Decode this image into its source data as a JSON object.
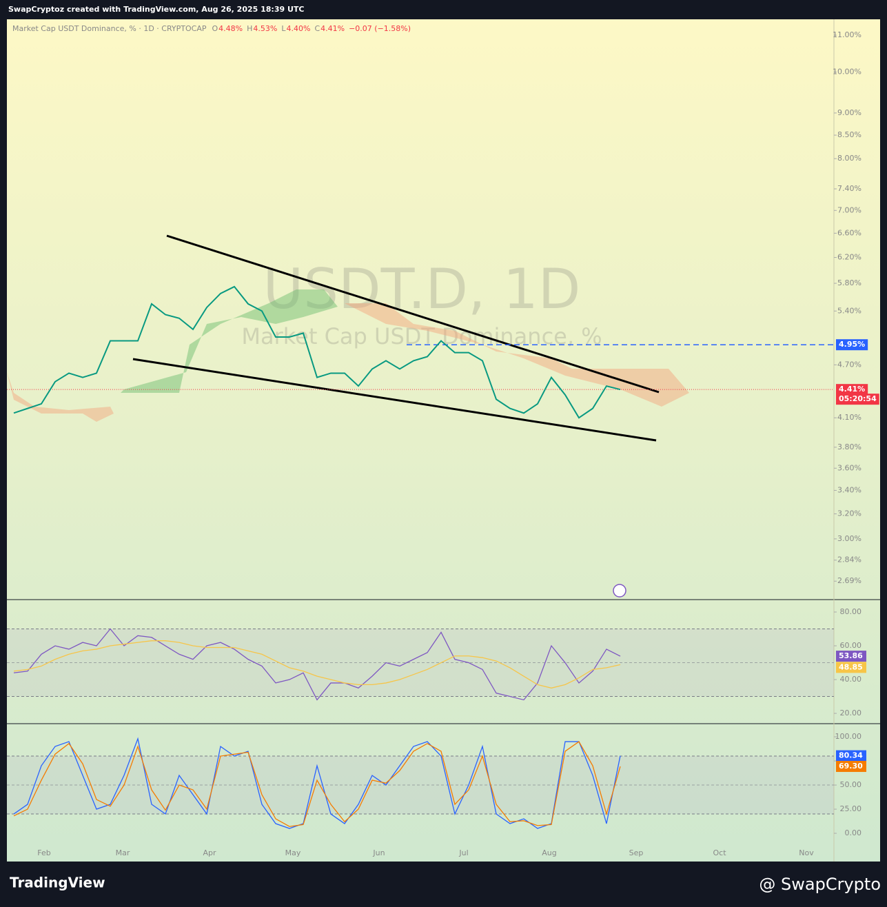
{
  "header": {
    "text": "SwapCryptoz created with TradingView.com, Aug 26, 2025 18:39 UTC"
  },
  "legend": {
    "symbol": "Market Cap USDT Dominance, % · 1D · CRYPTOCAP",
    "items": [
      {
        "key": "O",
        "value": "4.48%"
      },
      {
        "key": "H",
        "value": "4.53%"
      },
      {
        "key": "L",
        "value": "4.40%"
      },
      {
        "key": "C",
        "value": "4.41%"
      }
    ],
    "change": "−0.07 (−1.58%)"
  },
  "watermark": {
    "line1": "USDT.D, 1D",
    "line2": "Market Cap USDT Dominance, %"
  },
  "time_axis": [
    "Feb",
    "Mar",
    "Apr",
    "May",
    "Jun",
    "Jul",
    "Aug",
    "Sep",
    "Oct",
    "Nov"
  ],
  "chart_data": [
    {
      "type": "line",
      "log_scale": true,
      "ylim": [
        2.565,
        11.46
      ],
      "yticks": [
        {
          "value": 11,
          "label": "11.00%"
        },
        {
          "value": 10,
          "label": "10.00%"
        },
        {
          "value": 9,
          "label": "9.00%"
        },
        {
          "value": 8.5,
          "label": "8.50%"
        },
        {
          "value": 8,
          "label": "8.00%"
        },
        {
          "value": 7.4,
          "label": "7.40%"
        },
        {
          "value": 7,
          "label": "7.00%"
        },
        {
          "value": 6.6,
          "label": "6.60%"
        },
        {
          "value": 6.2,
          "label": "6.20%"
        },
        {
          "value": 5.8,
          "label": "5.80%"
        },
        {
          "value": 5.4,
          "label": "5.40%"
        },
        {
          "value": 4.7,
          "label": "4.70%"
        },
        {
          "value": 4.1,
          "label": "4.10%"
        },
        {
          "value": 3.8,
          "label": "3.80%"
        },
        {
          "value": 3.6,
          "label": "3.60%"
        },
        {
          "value": 3.4,
          "label": "3.40%"
        },
        {
          "value": 3.2,
          "label": "3.20%"
        },
        {
          "value": 3,
          "label": "3.00%"
        },
        {
          "value": 2.84,
          "label": "2.84%"
        },
        {
          "value": 2.69,
          "label": "2.69%"
        }
      ],
      "series": [
        {
          "color": "#089981",
          "values": [
            4.15,
            4.2,
            4.25,
            4.5,
            4.6,
            4.55,
            4.6,
            5.0,
            5.0,
            5.0,
            5.5,
            5.35,
            5.3,
            5.15,
            5.45,
            5.65,
            5.75,
            5.5,
            5.4,
            5.05,
            5.05,
            5.1,
            4.55,
            4.6,
            4.6,
            4.45,
            4.65,
            4.75,
            4.65,
            4.75,
            4.8,
            5.0,
            4.85,
            4.85,
            4.75,
            4.3,
            4.2,
            4.15,
            4.25,
            4.55,
            4.35,
            4.1,
            4.2,
            4.45,
            4.41
          ]
        }
      ],
      "price_lines": [
        {
          "value": 4.95,
          "label": "4.95%",
          "color": "#2962ff"
        },
        {
          "value": 4.41,
          "label": "4.41%",
          "sublabel": "05:20:54",
          "color": "#f23645"
        }
      ]
    },
    {
      "type": "line",
      "ylim": [
        13.9,
        87.35
      ],
      "yticks": [
        {
          "value": 80,
          "label": "80.00"
        },
        {
          "value": 60,
          "label": "60.00"
        },
        {
          "value": 40,
          "label": "40.00"
        },
        {
          "value": 20,
          "label": "20.00"
        }
      ],
      "bands": [
        30,
        70
      ],
      "midline": 50,
      "series": [
        {
          "color": "#7e57c2",
          "values": [
            44,
            45,
            55,
            60,
            58,
            62,
            60,
            70,
            60,
            66,
            65,
            60,
            55,
            52,
            60,
            62,
            58,
            52,
            48,
            38,
            40,
            44,
            28,
            38,
            38,
            35,
            42,
            50,
            48,
            52,
            56,
            68,
            52,
            50,
            46,
            32,
            30,
            28,
            38,
            60,
            50,
            38,
            45,
            58,
            53.86
          ]
        },
        {
          "color": "#f7c548",
          "values": [
            45,
            46,
            48,
            52,
            55,
            57,
            58,
            60,
            61,
            62,
            63,
            63,
            62,
            60,
            59,
            59,
            59,
            57,
            55,
            51,
            47,
            45,
            42,
            40,
            38,
            37,
            37,
            38,
            40,
            43,
            46,
            50,
            54,
            54,
            53,
            51,
            47,
            42,
            37,
            35,
            37,
            41,
            46,
            47,
            48.85
          ]
        }
      ]
    },
    {
      "type": "line",
      "ylim": [
        -11.4,
        113.6
      ],
      "yticks": [
        {
          "value": 100,
          "label": "100.00"
        },
        {
          "value": 75,
          "label": "75.00"
        },
        {
          "value": 50,
          "label": "50.00"
        },
        {
          "value": 25,
          "label": "25.00"
        },
        {
          "value": 0,
          "label": "0.00"
        }
      ],
      "bands": [
        20,
        80
      ],
      "midline": 50,
      "series": [
        {
          "color": "#2962ff",
          "values": [
            20,
            30,
            70,
            90,
            95,
            60,
            25,
            30,
            60,
            98,
            30,
            20,
            60,
            40,
            20,
            90,
            80,
            85,
            30,
            10,
            5,
            10,
            70,
            20,
            10,
            30,
            60,
            50,
            70,
            90,
            95,
            80,
            20,
            50,
            90,
            20,
            10,
            15,
            5,
            10,
            95,
            95,
            60,
            10,
            80.34
          ]
        },
        {
          "color": "#f57c00",
          "last_label": "69.30",
          "values": [
            18,
            25,
            55,
            82,
            93,
            72,
            35,
            28,
            50,
            90,
            45,
            24,
            50,
            45,
            25,
            80,
            82,
            84,
            40,
            15,
            7,
            9,
            55,
            30,
            12,
            25,
            55,
            52,
            65,
            85,
            93,
            85,
            30,
            45,
            80,
            30,
            12,
            13,
            8,
            9,
            85,
            95,
            70,
            20,
            69.3
          ]
        }
      ]
    }
  ],
  "footer": {
    "brand": "TradingView",
    "author": "@ SwapCrypto"
  }
}
